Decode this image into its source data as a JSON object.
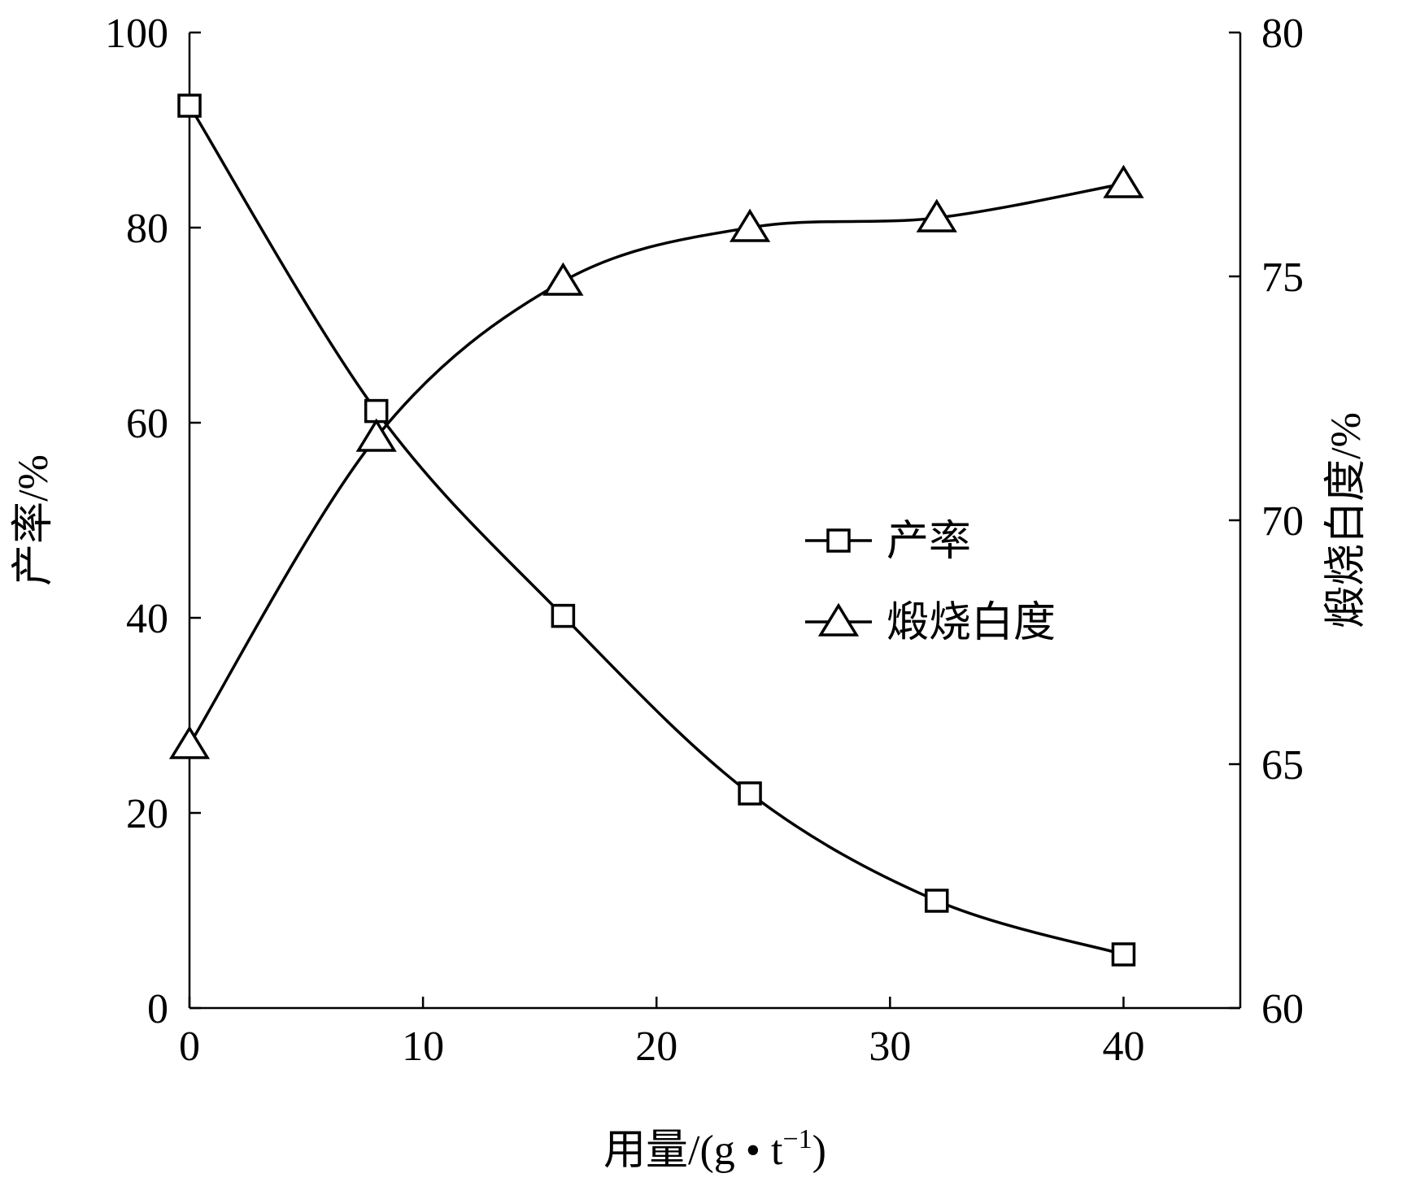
{
  "chart_data": {
    "type": "line",
    "x": [
      0,
      8,
      16,
      24,
      32,
      40
    ],
    "xlabel": {
      "main": "用量/(g • t",
      "sup": "−1",
      "close": ")"
    },
    "ylabel_left": "产率/%",
    "ylabel_right": "煅烧白度/%",
    "xlim": [
      0,
      45
    ],
    "ylim_left": [
      0,
      100
    ],
    "ylim_right": [
      60,
      80
    ],
    "xticks": [
      0,
      10,
      20,
      30,
      40
    ],
    "yticks_left": [
      0,
      20,
      40,
      60,
      80,
      100
    ],
    "yticks_right": [
      60,
      65,
      70,
      75,
      80
    ],
    "grid": false,
    "legend_position": "center-right",
    "series": [
      {
        "name": "产率",
        "axis": "left",
        "marker": "square",
        "values": [
          92.5,
          61.2,
          40.2,
          22.0,
          11.0,
          5.5
        ]
      },
      {
        "name": "煅烧白度",
        "axis": "right",
        "marker": "triangle",
        "values": [
          65.4,
          71.7,
          74.9,
          76.0,
          76.2,
          76.9
        ]
      }
    ]
  }
}
